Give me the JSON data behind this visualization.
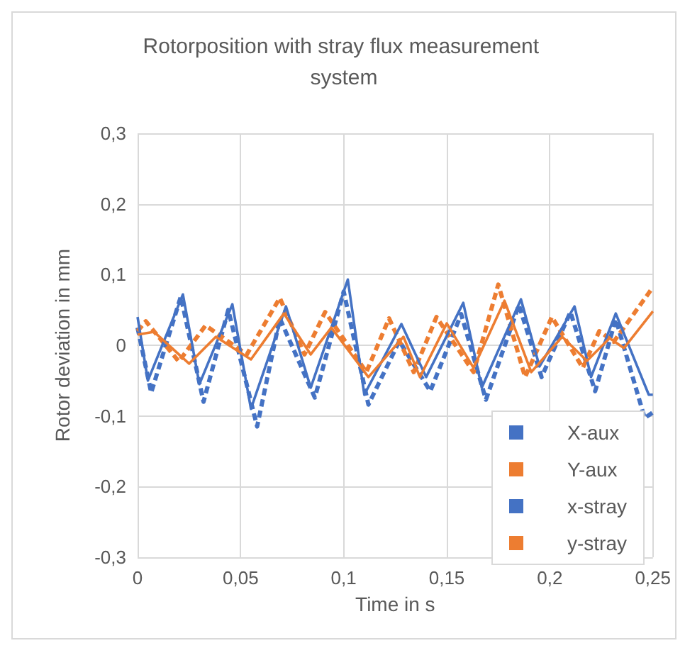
{
  "chart_data": {
    "type": "line",
    "title": "Rotorposition with stray flux measurement system",
    "xlabel": "Time in s",
    "ylabel": "Rotor deviation in mm",
    "xlim": [
      0,
      0.25
    ],
    "ylim": [
      -0.3,
      0.3
    ],
    "xticks": [
      0,
      {
        "value": 0.05,
        "label": "0,05"
      },
      {
        "value": 0.1,
        "label": "0,1"
      },
      {
        "value": 0.15,
        "label": "0,15"
      },
      {
        "value": 0.2,
        "label": "0,2"
      },
      {
        "value": 0.25,
        "label": "0,25"
      }
    ],
    "yticks": [
      {
        "value": -0.3,
        "label": "-0,3"
      },
      {
        "value": -0.2,
        "label": "-0,2"
      },
      {
        "value": -0.1,
        "label": "-0,1"
      },
      0,
      {
        "value": 0.1,
        "label": "0,1"
      },
      {
        "value": 0.2,
        "label": "0,2"
      },
      {
        "value": 0.3,
        "label": "0,3"
      }
    ],
    "grid": true,
    "legend": "bottom right",
    "marker": "none",
    "series": [
      {
        "name": "X-aux",
        "color": "#4472c4",
        "line_style": "dashed",
        "x": [
          0,
          0.0066,
          0.021,
          0.032,
          0.044,
          0.058,
          0.069,
          0.086,
          0.1,
          0.112,
          0.127,
          0.142,
          0.157,
          0.169,
          0.185,
          0.196,
          0.21,
          0.222,
          0.232,
          0.246,
          0.25
        ],
        "values": [
          0.025,
          -0.067,
          0.069,
          -0.08,
          0.05,
          -0.115,
          0.038,
          -0.074,
          0.076,
          -0.084,
          0.006,
          -0.065,
          0.044,
          -0.077,
          0.057,
          -0.045,
          0.047,
          -0.065,
          0.037,
          -0.103,
          -0.095
        ]
      },
      {
        "name": "Y-aux",
        "color": "#ed7d31",
        "line_style": "dashed",
        "x": [
          0,
          0.004,
          0.02,
          0.033,
          0.053,
          0.069,
          0.081,
          0.091,
          0.111,
          0.122,
          0.134,
          0.145,
          0.163,
          0.175,
          0.188,
          0.201,
          0.216,
          0.224,
          0.231,
          0.249
        ],
        "values": [
          0.02,
          0.034,
          -0.023,
          0.028,
          -0.013,
          0.067,
          -0.013,
          0.047,
          -0.038,
          0.038,
          -0.038,
          0.04,
          -0.038,
          0.086,
          -0.045,
          0.04,
          -0.032,
          0.02,
          0.005,
          0.078
        ]
      },
      {
        "name": "x-stray",
        "color": "#4472c4",
        "line_style": "solid",
        "x": [
          0,
          0.005,
          0.022,
          0.03,
          0.046,
          0.055,
          0.072,
          0.084,
          0.102,
          0.11,
          0.128,
          0.14,
          0.158,
          0.167,
          0.186,
          0.195,
          0.212,
          0.22,
          0.232,
          0.248,
          0.25
        ],
        "values": [
          0.04,
          -0.05,
          0.072,
          -0.055,
          0.058,
          -0.09,
          0.055,
          -0.06,
          0.093,
          -0.07,
          0.03,
          -0.045,
          0.06,
          -0.06,
          0.065,
          -0.03,
          0.055,
          -0.045,
          0.045,
          -0.07,
          -0.07
        ]
      },
      {
        "name": "y-stray",
        "color": "#ed7d31",
        "line_style": "solid",
        "x": [
          0,
          0.008,
          0.025,
          0.038,
          0.055,
          0.071,
          0.084,
          0.094,
          0.112,
          0.129,
          0.137,
          0.15,
          0.163,
          0.178,
          0.191,
          0.206,
          0.218,
          0.229,
          0.236,
          0.25
        ],
        "values": [
          0.015,
          0.019,
          -0.026,
          0.012,
          -0.02,
          0.045,
          -0.013,
          0.025,
          -0.045,
          0.012,
          -0.045,
          0.031,
          -0.032,
          0.063,
          -0.038,
          0.012,
          -0.022,
          0.01,
          -0.004,
          0.048
        ]
      }
    ]
  }
}
